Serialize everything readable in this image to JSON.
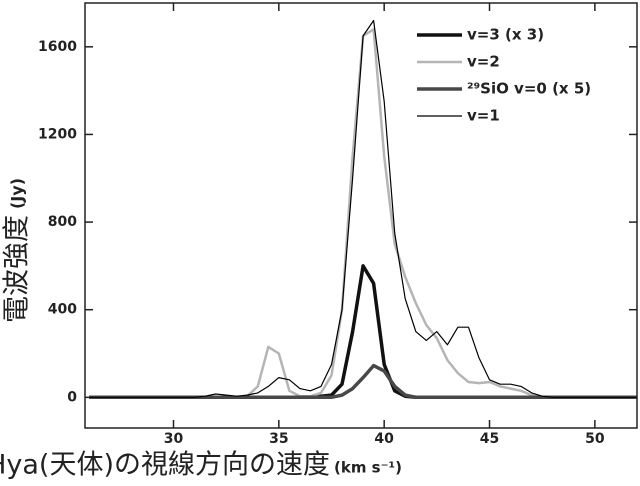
{
  "chart_data": {
    "type": "line",
    "x_label": "W Hya(天体)の視線方向の速度",
    "x_label_unit": "(km s⁻¹)",
    "y_label": "電波強度",
    "y_label_unit": "(Jy)",
    "x": [
      26,
      26.5,
      27,
      27.5,
      28,
      28.5,
      29,
      29.5,
      30,
      30.5,
      31,
      31.5,
      32,
      32.5,
      33,
      33.5,
      34,
      34.5,
      35,
      35.5,
      36,
      36.5,
      37,
      37.5,
      38,
      38.5,
      39,
      39.5,
      40,
      40.5,
      41,
      41.5,
      42,
      42.5,
      43,
      43.5,
      44,
      44.5,
      45,
      45.5,
      46,
      46.5,
      47,
      47.5,
      48,
      48.5,
      49,
      49.5,
      50,
      50.5,
      51,
      51.5,
      52
    ],
    "series": [
      {
        "name": "v=3 (x 3)",
        "color": "#111111",
        "line_width": 3.5,
        "values": [
          0,
          0,
          0,
          0,
          0,
          0,
          0,
          0,
          0,
          0,
          0,
          0,
          0,
          0,
          0,
          0,
          0,
          0,
          0,
          0,
          0,
          0,
          5,
          10,
          60,
          300,
          600,
          520,
          150,
          30,
          5,
          0,
          0,
          0,
          0,
          0,
          0,
          0,
          0,
          0,
          0,
          0,
          0,
          0,
          0,
          0,
          0,
          0,
          0,
          0,
          0,
          0,
          0
        ]
      },
      {
        "name": "v=2",
        "color": "#b5b5b5",
        "line_width": 2.5,
        "values": [
          0,
          0,
          0,
          0,
          0,
          0,
          0,
          0,
          0,
          0,
          0,
          0,
          0,
          0,
          0,
          5,
          50,
          230,
          200,
          30,
          5,
          5,
          20,
          100,
          400,
          1100,
          1650,
          1680,
          1100,
          700,
          550,
          430,
          330,
          270,
          170,
          110,
          70,
          65,
          70,
          50,
          40,
          30,
          10,
          0,
          0,
          0,
          0,
          0,
          0,
          0,
          0,
          0,
          0
        ]
      },
      {
        "name": "²⁹SiO v=0 (x 5)",
        "color": "#484848",
        "line_width": 3.5,
        "values": [
          0,
          0,
          0,
          0,
          0,
          0,
          0,
          0,
          0,
          0,
          0,
          0,
          0,
          0,
          0,
          0,
          0,
          0,
          0,
          0,
          0,
          0,
          0,
          0,
          10,
          40,
          90,
          145,
          120,
          50,
          10,
          0,
          0,
          0,
          0,
          0,
          0,
          0,
          0,
          0,
          0,
          0,
          0,
          0,
          0,
          0,
          0,
          0,
          0,
          0,
          0,
          0,
          0
        ]
      },
      {
        "name": "v=1",
        "color": "#000000",
        "line_width": 1.2,
        "values": [
          0,
          0,
          0,
          0,
          0,
          0,
          0,
          0,
          0,
          0,
          0,
          5,
          15,
          10,
          5,
          10,
          20,
          50,
          90,
          80,
          40,
          30,
          50,
          150,
          400,
          1000,
          1650,
          1720,
          1350,
          750,
          450,
          300,
          260,
          300,
          240,
          320,
          320,
          180,
          80,
          60,
          60,
          50,
          20,
          5,
          0,
          0,
          0,
          0,
          0,
          0,
          0,
          0,
          0
        ]
      }
    ],
    "xlim": [
      25.8,
      52
    ],
    "ylim": [
      -140,
      1800
    ],
    "xticks": [
      30,
      35,
      40,
      45,
      50
    ],
    "yticks": [
      0,
      400,
      800,
      1200,
      1600
    ],
    "legend": "upper right",
    "grid": false
  }
}
